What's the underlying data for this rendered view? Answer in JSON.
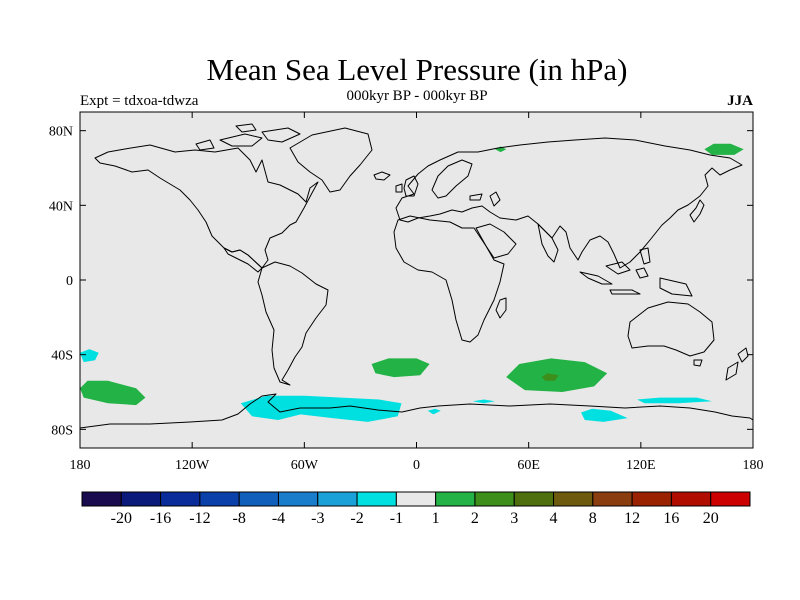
{
  "plot": {
    "title": "Mean Sea Level Pressure (in hPa)",
    "subtitle": "000kyr BP - 000kyr BP",
    "left_label": "Expt = tdxoa-tdwza",
    "right_label": "JJA"
  },
  "map": {
    "projection": "cylindrical-equidistant",
    "lon_range": [
      -180,
      180
    ],
    "lat_range": [
      -90,
      90
    ],
    "lon_ticks": [
      {
        "value": -180,
        "label": "180"
      },
      {
        "value": -120,
        "label": "120W"
      },
      {
        "value": -60,
        "label": "60W"
      },
      {
        "value": 0,
        "label": "0"
      },
      {
        "value": 60,
        "label": "60E"
      },
      {
        "value": 120,
        "label": "120E"
      },
      {
        "value": 180,
        "label": "180"
      }
    ],
    "lat_ticks": [
      {
        "value": 80,
        "label": "80N"
      },
      {
        "value": 40,
        "label": "40N"
      },
      {
        "value": 0,
        "label": "0"
      },
      {
        "value": -40,
        "label": "40S"
      },
      {
        "value": -80,
        "label": "80S"
      }
    ],
    "background_color": "#e8e8e8",
    "coast_color": "#000000"
  },
  "colorbar": {
    "colors": [
      "#1a0a4e",
      "#0a1a7a",
      "#0a2c9a",
      "#0a40aa",
      "#1060bb",
      "#1a7dcc",
      "#1aa2d8",
      "#00e0e0",
      "#e8e8e8",
      "#22b245",
      "#3d8e1a",
      "#4f6e0e",
      "#6e5a0e",
      "#8a3e10",
      "#9a2200",
      "#b00c00",
      "#cc0000"
    ],
    "labels": [
      "-20",
      "-16",
      "-12",
      "-8",
      "-4",
      "-3",
      "-2",
      "-1",
      "1",
      "2",
      "3",
      "4",
      "8",
      "12",
      "16",
      "20"
    ]
  },
  "chart_data": {
    "type": "heatmap",
    "title": "Mean Sea Level Pressure (in hPa)",
    "subtitle": "000kyr BP - 000kyr BP",
    "season": "JJA",
    "experiment": "tdxoa-tdwza",
    "levels": [
      -20,
      -16,
      -12,
      -8,
      -4,
      -3,
      -2,
      -1,
      1,
      2,
      3,
      4,
      8,
      12,
      16,
      20
    ],
    "regions": [
      {
        "name": "southern-ocean-south-pacific-pos",
        "level_range": [
          1,
          2
        ],
        "color": "#22b245",
        "polygon": [
          [
            -180,
            -58
          ],
          [
            -176,
            -54
          ],
          [
            -165,
            -54
          ],
          [
            -150,
            -58
          ],
          [
            -145,
            -63
          ],
          [
            -150,
            -67
          ],
          [
            -165,
            -66
          ],
          [
            -178,
            -63
          ]
        ]
      },
      {
        "name": "southern-ocean-south-atlantic-pos",
        "level_range": [
          1,
          2
        ],
        "color": "#22b245",
        "polygon": [
          [
            -24,
            -45
          ],
          [
            -15,
            -42
          ],
          [
            0,
            -42
          ],
          [
            7,
            -45
          ],
          [
            2,
            -51
          ],
          [
            -12,
            -52
          ],
          [
            -22,
            -50
          ]
        ]
      },
      {
        "name": "southern-ocean-indian-pos",
        "level_range": [
          1,
          2
        ],
        "color": "#22b245",
        "polygon": [
          [
            48,
            -52
          ],
          [
            55,
            -45
          ],
          [
            72,
            -42
          ],
          [
            90,
            -44
          ],
          [
            102,
            -50
          ],
          [
            95,
            -57
          ],
          [
            78,
            -60
          ],
          [
            58,
            -59
          ]
        ]
      },
      {
        "name": "southern-ocean-indian-core",
        "level_range": [
          2,
          3
        ],
        "color": "#3d8e1a",
        "polygon": [
          [
            67,
            -52
          ],
          [
            70,
            -50
          ],
          [
            76,
            -51
          ],
          [
            74,
            -54
          ],
          [
            69,
            -54
          ]
        ]
      },
      {
        "name": "arctic-siberia-pos",
        "level_range": [
          1,
          2
        ],
        "color": "#22b245",
        "polygon": [
          [
            154,
            70
          ],
          [
            159,
            73
          ],
          [
            168,
            73
          ],
          [
            175,
            70
          ],
          [
            170,
            67
          ],
          [
            158,
            67
          ]
        ]
      },
      {
        "name": "arctic-svalbard-pos",
        "level_range": [
          1,
          2
        ],
        "color": "#22b245",
        "polygon": [
          [
            42,
            70
          ],
          [
            45,
            71.5
          ],
          [
            48,
            70
          ],
          [
            45,
            68.5
          ]
        ]
      },
      {
        "name": "south-pacific-small-neg",
        "level_range": [
          -2,
          -1
        ],
        "color": "#00e0e0",
        "polygon": [
          [
            -180,
            -39
          ],
          [
            -175,
            -37
          ],
          [
            -170,
            -39
          ],
          [
            -172,
            -43
          ],
          [
            -178,
            -44
          ]
        ]
      },
      {
        "name": "weddell-amundsen-neg",
        "level_range": [
          -2,
          -1
        ],
        "color": "#00e0e0",
        "polygon": [
          [
            -94,
            -66
          ],
          [
            -80,
            -62
          ],
          [
            -60,
            -62
          ],
          [
            -40,
            -63
          ],
          [
            -20,
            -64
          ],
          [
            -8,
            -66
          ],
          [
            -10,
            -73
          ],
          [
            -26,
            -76
          ],
          [
            -45,
            -74
          ],
          [
            -62,
            -72
          ],
          [
            -74,
            -75
          ],
          [
            -88,
            -73
          ]
        ]
      },
      {
        "name": "indian-sector-neg-west",
        "level_range": [
          -2,
          -1
        ],
        "color": "#00e0e0",
        "polygon": [
          [
            6,
            -70
          ],
          [
            10,
            -69
          ],
          [
            13,
            -70
          ],
          [
            9,
            -72
          ]
        ]
      },
      {
        "name": "indian-sector-neg-mid",
        "level_range": [
          -2,
          -1
        ],
        "color": "#00e0e0",
        "polygon": [
          [
            30,
            -65
          ],
          [
            36,
            -64
          ],
          [
            42,
            -65
          ],
          [
            36,
            -66
          ]
        ]
      },
      {
        "name": "australian-sector-neg",
        "level_range": [
          -2,
          -1
        ],
        "color": "#00e0e0",
        "polygon": [
          [
            88,
            -71
          ],
          [
            94,
            -69
          ],
          [
            104,
            -70
          ],
          [
            113,
            -74
          ],
          [
            100,
            -76
          ],
          [
            90,
            -75
          ]
        ]
      },
      {
        "name": "pacific-sector-neg",
        "level_range": [
          -2,
          -1
        ],
        "color": "#00e0e0",
        "polygon": [
          [
            118,
            -64
          ],
          [
            130,
            -63
          ],
          [
            150,
            -63
          ],
          [
            158,
            -65
          ],
          [
            140,
            -66
          ],
          [
            122,
            -66
          ]
        ]
      }
    ]
  }
}
